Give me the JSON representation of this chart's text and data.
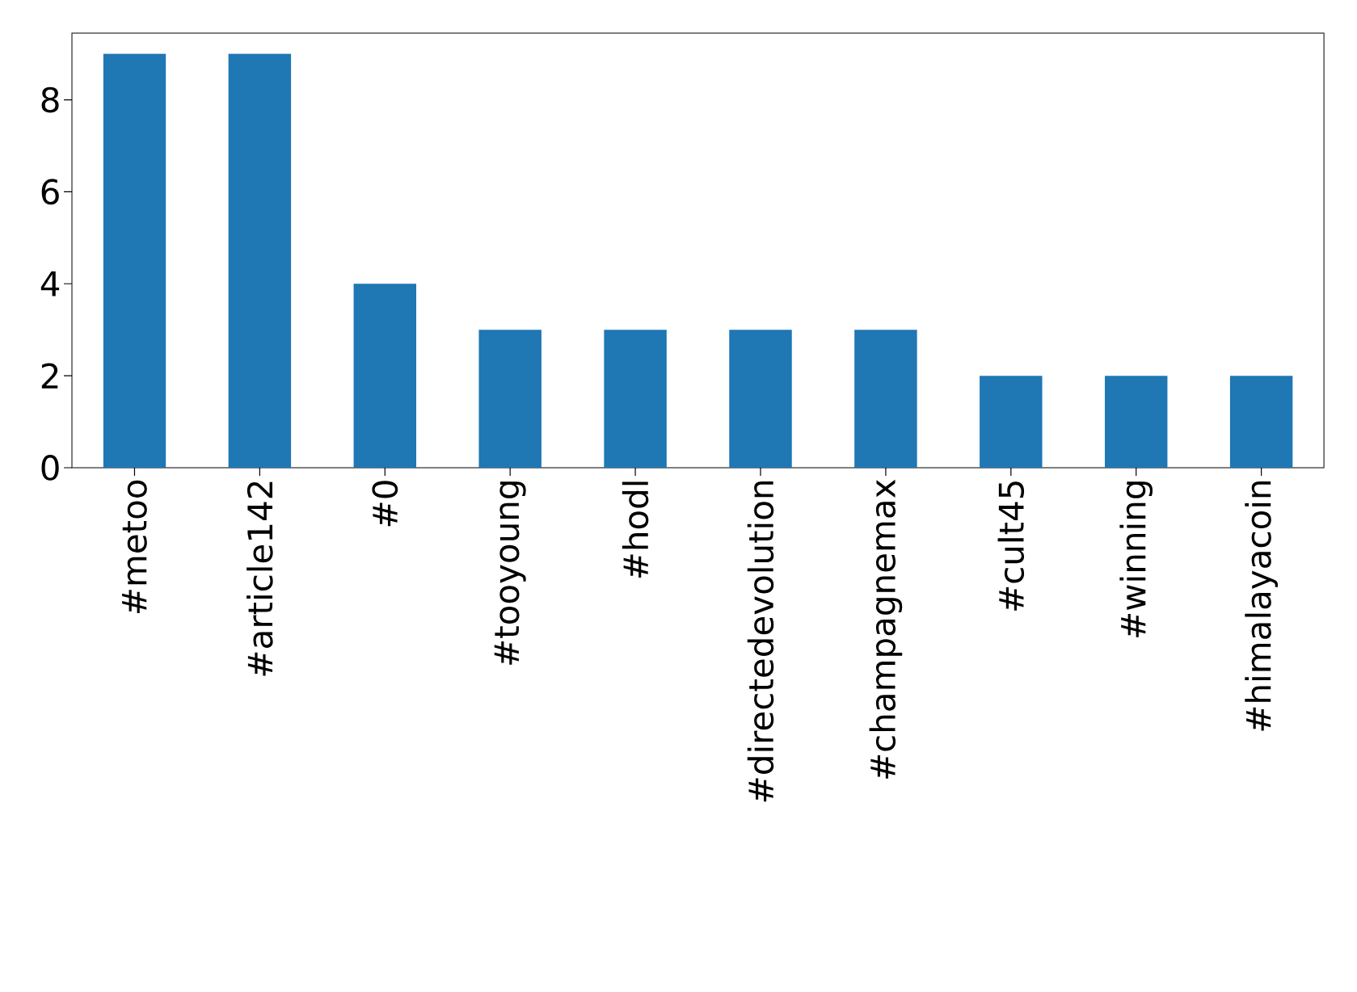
{
  "chart_data": {
    "type": "bar",
    "categories": [
      "#metoo",
      "#article142",
      "#0",
      "#tooyoung",
      "#hodl",
      "#directedevolution",
      "#champagnemax",
      "#cult45",
      "#winning",
      "#himalayacoin"
    ],
    "values": [
      9,
      9,
      4,
      3,
      3,
      3,
      3,
      2,
      2,
      2
    ],
    "color": "#1f77b4",
    "ylim": [
      0,
      9.45
    ],
    "yticks": [
      0,
      2,
      4,
      6,
      8
    ]
  }
}
